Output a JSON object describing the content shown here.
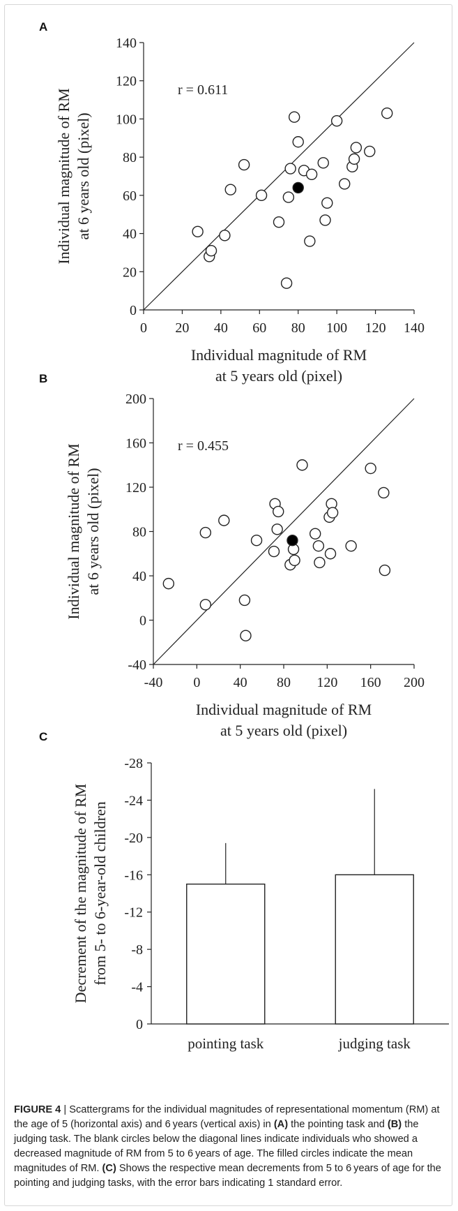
{
  "panels": {
    "a": {
      "letter": "A",
      "r_text": "r = 0.611"
    },
    "b": {
      "letter": "B",
      "r_text": "r = 0.455"
    },
    "c": {
      "letter": "C"
    }
  },
  "caption": {
    "label": "FIGURE 4",
    "separator": " | ",
    "segments": [
      {
        "text": "Scattergrams for the individual magnitudes of representational momentum (RM) at the age of 5 (horizontal axis) and 6 years (vertical axis) in ",
        "bold": false
      },
      {
        "text": "(A)",
        "bold": true
      },
      {
        "text": " the pointing task and ",
        "bold": false
      },
      {
        "text": "(B)",
        "bold": true
      },
      {
        "text": " the judging task. The blank circles below the diagonal lines indicate individuals who showed a decreased magnitude of RM from 5 to 6 years of age. The filled circles indicate the mean magnitudes of RM. ",
        "bold": false
      },
      {
        "text": "(C)",
        "bold": true
      },
      {
        "text": " Shows the respective mean decrements from 5 to 6 years of age for the pointing and judging tasks, with the error bars indicating 1 standard error.",
        "bold": false
      }
    ]
  },
  "colors": {
    "ink": "#222222",
    "open_fill": "#ffffff",
    "mean_fill": "#000000"
  },
  "chart_data": [
    {
      "type": "scatter",
      "panel": "A",
      "title": "",
      "xlabel": [
        "Individual magnitude of RM",
        "at 5 years old (pixel)"
      ],
      "ylabel": [
        "Individual magnitude of RM",
        "at 6 years old (pixel)"
      ],
      "xlim": [
        0,
        140
      ],
      "ylim": [
        0,
        140
      ],
      "xticks": [
        0,
        20,
        40,
        60,
        80,
        100,
        120,
        140
      ],
      "yticks": [
        0,
        20,
        40,
        60,
        80,
        100,
        120,
        140
      ],
      "annotation": "r = 0.611",
      "reference_line": "y = x",
      "grid": false,
      "series": [
        {
          "x": [
            28,
            34,
            35,
            42,
            45,
            52,
            61,
            70,
            74,
            75,
            76,
            78,
            80,
            83,
            86,
            87,
            93,
            94,
            95,
            100,
            104,
            108,
            109,
            110,
            117,
            126
          ],
          "y": [
            41,
            28,
            31,
            39,
            63,
            76,
            60,
            46,
            14,
            59,
            74,
            101,
            88,
            73,
            36,
            71,
            77,
            47,
            56,
            99,
            66,
            75,
            79,
            85,
            83,
            103
          ],
          "marker": "open-circle"
        },
        {
          "x": [
            80
          ],
          "y": [
            64
          ],
          "marker": "filled-circle"
        }
      ]
    },
    {
      "type": "scatter",
      "panel": "B",
      "title": "",
      "xlabel": [
        "Individual magnitude of RM",
        "at 5 years old (pixel)"
      ],
      "ylabel": [
        "Individual magnitude of RM",
        "at 6 years old (pixel)"
      ],
      "xlim": [
        -40,
        200
      ],
      "ylim": [
        -40,
        200
      ],
      "xticks": [
        -40,
        0,
        40,
        80,
        120,
        160,
        200
      ],
      "yticks": [
        -40,
        0,
        40,
        80,
        120,
        160,
        200
      ],
      "annotation": "r = 0.455",
      "reference_line": "y = x",
      "grid": false,
      "series": [
        {
          "x": [
            -26,
            8,
            8,
            25,
            44,
            45,
            55,
            71,
            72,
            74,
            75,
            86,
            89,
            90,
            97,
            109,
            112,
            113,
            122,
            123,
            124,
            125,
            142,
            160,
            172,
            173
          ],
          "y": [
            33,
            14,
            79,
            90,
            18,
            -14,
            72,
            62,
            105,
            82,
            98,
            50,
            64,
            54,
            140,
            78,
            67,
            52,
            93,
            60,
            105,
            97,
            67,
            137,
            115,
            45
          ],
          "marker": "open-circle"
        },
        {
          "x": [
            88
          ],
          "y": [
            72
          ],
          "marker": "filled-circle"
        }
      ]
    },
    {
      "type": "bar",
      "panel": "C",
      "title": "",
      "xlabel": "",
      "ylabel": [
        "Decrement of the magnitude of RM",
        "from 5- to 6-year-old children"
      ],
      "categories": [
        "pointing task",
        "judging task"
      ],
      "values": [
        -15,
        -16
      ],
      "error": [
        4.4,
        9.2
      ],
      "ylim": [
        0,
        -28
      ],
      "yticks": [
        0,
        -4,
        -8,
        -12,
        -16,
        -20,
        -24,
        -28
      ],
      "y_axis_inverted": true,
      "grid": false
    }
  ]
}
